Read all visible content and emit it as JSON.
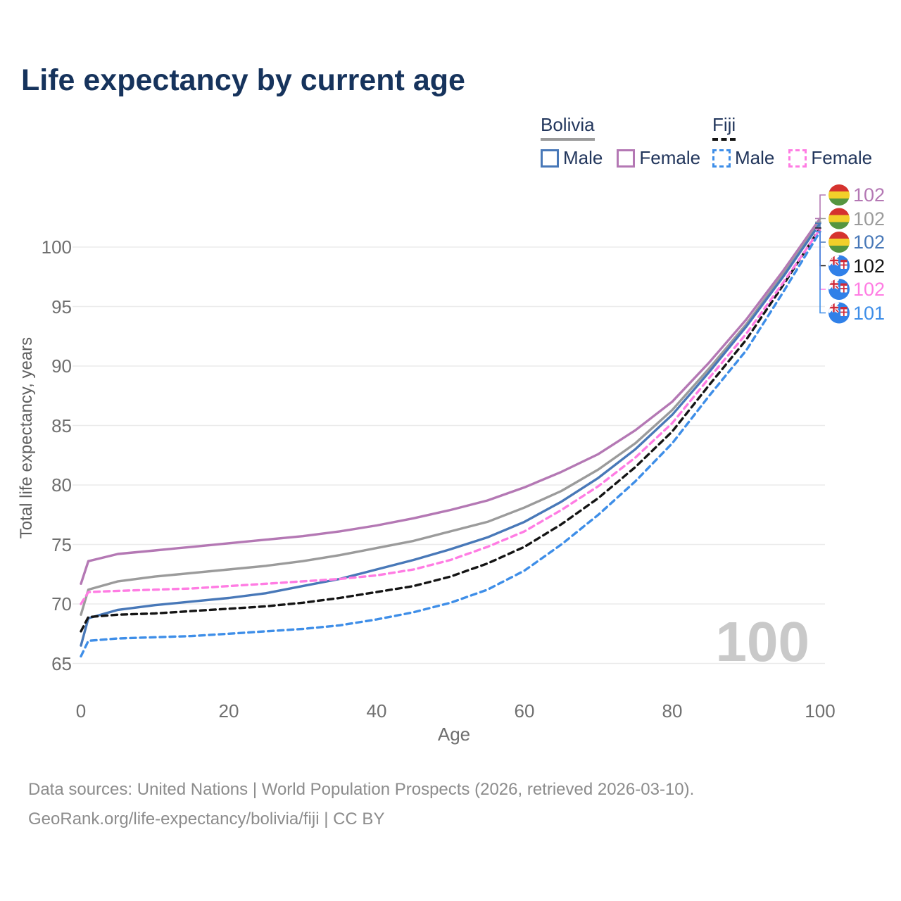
{
  "title": "Life expectancy by current age",
  "legend": {
    "groups": [
      {
        "id": "bolivia",
        "label": "Bolivia",
        "line_style": "solid",
        "line_color": "#9b9b9b",
        "items": [
          {
            "label": "Male",
            "color": "#4878b8",
            "dashed": false
          },
          {
            "label": "Female",
            "color": "#b478b4",
            "dashed": false
          }
        ]
      },
      {
        "id": "fiji",
        "label": "Fiji",
        "line_style": "dashed",
        "line_color": "#141414",
        "items": [
          {
            "label": "Male",
            "color": "#3e8ee8",
            "dashed": true
          },
          {
            "label": "Female",
            "color": "#ff7ce3",
            "dashed": true
          }
        ]
      }
    ]
  },
  "chart_data": {
    "type": "line",
    "title": "Life expectancy by current age",
    "xlabel": "Age",
    "ylabel": "Total life expectancy, years",
    "x_ticks": [
      0,
      20,
      40,
      60,
      80,
      100
    ],
    "y_ticks": [
      65,
      70,
      75,
      80,
      85,
      90,
      95,
      100
    ],
    "xlim": [
      0,
      100
    ],
    "ylim": [
      64.5,
      104
    ],
    "grid": "horizontal",
    "legend_position": "top-right",
    "watermark": "100",
    "x": [
      0,
      1,
      5,
      10,
      15,
      20,
      25,
      30,
      35,
      40,
      45,
      50,
      55,
      60,
      65,
      70,
      75,
      80,
      85,
      90,
      95,
      100
    ],
    "series": [
      {
        "id": "bolivia-female",
        "name": "Bolivia Female",
        "country": "bolivia",
        "color": "#b478b4",
        "dashed": false,
        "end_label": "102",
        "values": [
          71.7,
          73.6,
          74.2,
          74.5,
          74.8,
          75.1,
          75.4,
          75.7,
          76.1,
          76.6,
          77.2,
          77.9,
          78.7,
          79.8,
          81.1,
          82.6,
          84.6,
          87.0,
          90.3,
          93.9,
          98.0,
          102.4
        ]
      },
      {
        "id": "bolivia-both",
        "name": "Bolivia Both sexes",
        "country": "bolivia",
        "color": "#9b9b9b",
        "dashed": false,
        "end_label": "102",
        "values": [
          69.1,
          71.2,
          71.9,
          72.3,
          72.6,
          72.9,
          73.2,
          73.6,
          74.1,
          74.7,
          75.3,
          76.1,
          76.9,
          78.1,
          79.5,
          81.3,
          83.5,
          86.3,
          89.8,
          93.5,
          97.7,
          102.1
        ]
      },
      {
        "id": "bolivia-male",
        "name": "Bolivia Male",
        "country": "bolivia",
        "color": "#4878b8",
        "dashed": false,
        "end_label": "102",
        "values": [
          66.5,
          68.8,
          69.5,
          69.9,
          70.2,
          70.5,
          70.9,
          71.5,
          72.1,
          72.9,
          73.7,
          74.6,
          75.6,
          76.9,
          78.6,
          80.6,
          83.0,
          85.9,
          89.5,
          93.3,
          97.5,
          102.0
        ]
      },
      {
        "id": "fiji-both",
        "name": "Fiji Both sexes",
        "country": "fiji",
        "color": "#141414",
        "dashed": true,
        "end_label": "102",
        "values": [
          67.7,
          68.9,
          69.1,
          69.2,
          69.4,
          69.6,
          69.8,
          70.1,
          70.5,
          71.0,
          71.5,
          72.3,
          73.4,
          74.8,
          76.7,
          78.9,
          81.5,
          84.5,
          88.4,
          92.2,
          96.8,
          101.6
        ]
      },
      {
        "id": "fiji-female",
        "name": "Fiji Female",
        "country": "fiji",
        "color": "#ff7ce3",
        "dashed": true,
        "end_label": "102",
        "values": [
          70.0,
          71.0,
          71.1,
          71.2,
          71.3,
          71.5,
          71.7,
          71.9,
          72.1,
          72.4,
          72.9,
          73.7,
          74.8,
          76.1,
          77.9,
          79.9,
          82.3,
          85.2,
          89.0,
          92.7,
          97.0,
          101.5
        ]
      },
      {
        "id": "fiji-male",
        "name": "Fiji Male",
        "country": "fiji",
        "color": "#3e8ee8",
        "dashed": true,
        "end_label": "101",
        "values": [
          65.6,
          66.9,
          67.1,
          67.2,
          67.3,
          67.5,
          67.7,
          67.9,
          68.2,
          68.7,
          69.3,
          70.1,
          71.2,
          72.8,
          75.0,
          77.5,
          80.3,
          83.5,
          87.5,
          91.3,
          96.2,
          101.3
        ]
      }
    ]
  },
  "footer": {
    "line1": "Data sources: United Nations | World Population Prospects (2026, retrieved 2026-03-10).",
    "line2": "GeoRank.org/life-expectancy/bolivia/fiji | CC BY"
  }
}
